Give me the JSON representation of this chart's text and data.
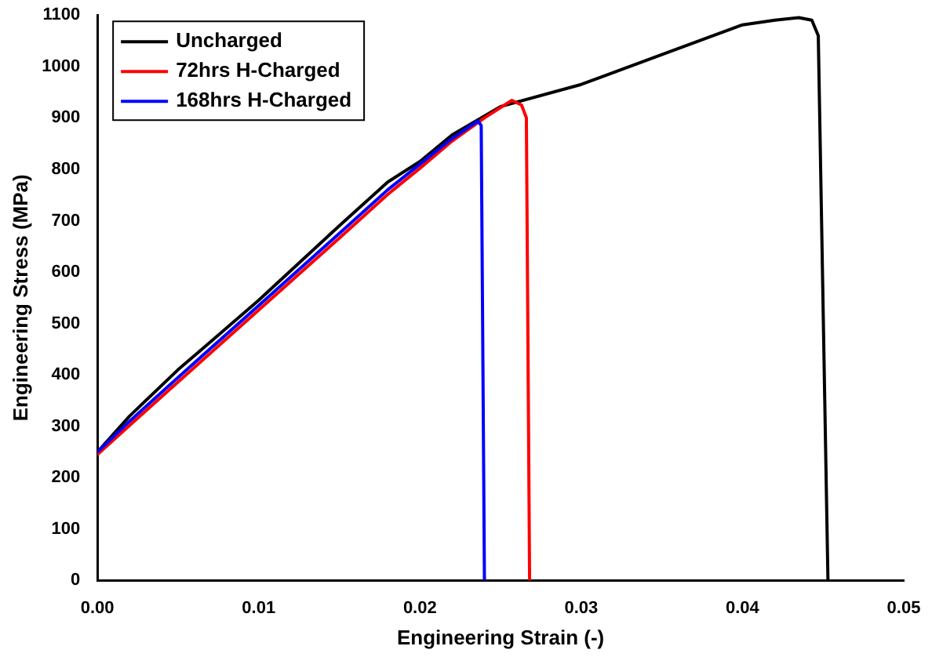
{
  "chart_data": {
    "type": "line",
    "xlabel": "Engineering Strain (-)",
    "ylabel": "Engineering Stress (MPa)",
    "xlim": [
      0,
      0.05
    ],
    "xticks": [
      {
        "value": 0,
        "label": "0.00"
      },
      {
        "value": 0.01,
        "label": "0.01"
      },
      {
        "value": 0.02,
        "label": "0.02"
      },
      {
        "value": 0.03,
        "label": "0.03"
      },
      {
        "value": 0.04,
        "label": "0.04"
      },
      {
        "value": 0.05,
        "label": "0.05"
      }
    ],
    "ylim": [
      0,
      1100
    ],
    "yticks": [
      0,
      100,
      200,
      300,
      400,
      500,
      600,
      700,
      800,
      900,
      1000,
      1100
    ],
    "legend": "top left",
    "grid": false,
    "marker": "none",
    "line_style": "solid",
    "series": [
      {
        "name": "Uncharged",
        "color": "#000000",
        "x": [
          0,
          0.002,
          0.005,
          0.01,
          0.015,
          0.018,
          0.02,
          0.022,
          0.025,
          0.03,
          0.035,
          0.04,
          0.042,
          0.0435,
          0.0443,
          0.0447,
          0.0453
        ],
        "values": [
          250,
          320,
          410,
          545,
          690,
          775,
          815,
          867,
          922,
          965,
          1023,
          1081,
          1090,
          1095,
          1090,
          1060,
          0
        ]
      },
      {
        "name": "72hrs H-Charged",
        "color": "#ff0000",
        "x": [
          0,
          0.002,
          0.005,
          0.01,
          0.015,
          0.018,
          0.02,
          0.022,
          0.024,
          0.0257,
          0.0263,
          0.0266,
          0.0268
        ],
        "values": [
          245,
          302,
          386,
          526,
          666,
          751,
          802,
          855,
          900,
          934,
          925,
          900,
          0
        ]
      },
      {
        "name": "168hrs H-Charged",
        "color": "#0000ff",
        "x": [
          0,
          0.002,
          0.005,
          0.01,
          0.015,
          0.018,
          0.02,
          0.022,
          0.0236,
          0.0238,
          0.024
        ],
        "values": [
          250,
          310,
          395,
          535,
          675,
          760,
          810,
          860,
          894,
          885,
          0
        ]
      }
    ]
  }
}
